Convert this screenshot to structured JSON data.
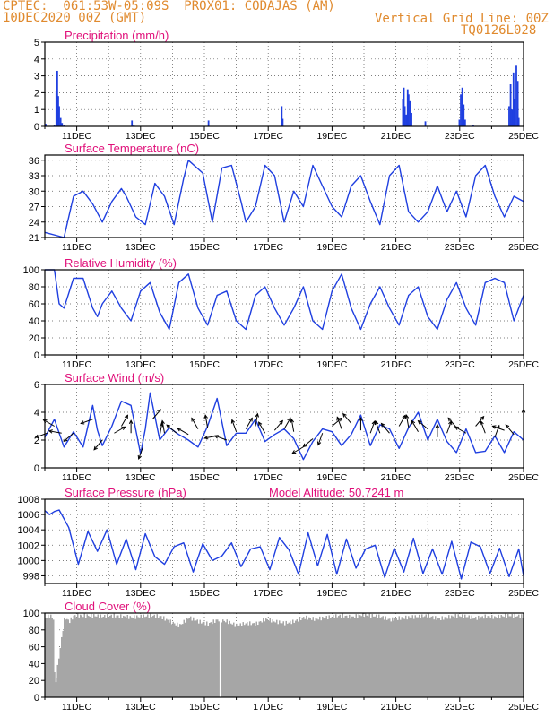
{
  "header": {
    "line1_left": "CPTEC:  061:53W-05:09S  PROX01: CODAJAS (AM)",
    "line2_left": "10DEC2020 00Z (GMT)",
    "line1_right": "Vertical Grid Line: 00Z",
    "line2_right": "TQ0126L028"
  },
  "colors": {
    "header": "#e08a2e",
    "title": "#e0107a",
    "series": "#1f3fe0",
    "cloud": "#a6a6a6",
    "grid": "#555555"
  },
  "x_tick_labels": [
    "11DEC",
    "13DEC",
    "15DEC",
    "17DEC",
    "19DEC",
    "21DEC",
    "23DEC",
    "25DEC"
  ],
  "chart_data": [
    {
      "type": "bar",
      "title": "Precipitation (mm/h)",
      "ylim": [
        0,
        5
      ],
      "yticks": [
        0,
        1,
        2,
        3,
        4,
        5
      ],
      "grid": true,
      "x_hour_bars": [
        [
          0.2,
          0.15
        ],
        [
          2.0,
          0.1
        ],
        [
          2.4,
          2.1
        ],
        [
          2.6,
          3.3
        ],
        [
          2.8,
          1.8
        ],
        [
          3.0,
          1.2
        ],
        [
          3.3,
          0.5
        ],
        [
          3.6,
          0.2
        ],
        [
          4.0,
          0.1
        ],
        [
          18.2,
          0.35
        ],
        [
          18.6,
          0.1
        ],
        [
          34.2,
          0.35
        ],
        [
          49.5,
          1.2
        ],
        [
          49.7,
          0.45
        ],
        [
          74.8,
          1.6
        ],
        [
          75.0,
          2.3
        ],
        [
          75.2,
          1.2
        ],
        [
          75.5,
          0.7
        ],
        [
          75.8,
          2.2
        ],
        [
          76.0,
          1.9
        ],
        [
          76.3,
          1.5
        ],
        [
          76.6,
          0.8
        ],
        [
          79.5,
          0.3
        ],
        [
          86.6,
          0.4
        ],
        [
          86.9,
          1.9
        ],
        [
          87.2,
          2.3
        ],
        [
          87.5,
          1.3
        ],
        [
          87.8,
          0.4
        ],
        [
          89.5,
          0.1
        ],
        [
          97.0,
          1.2
        ],
        [
          97.3,
          2.5
        ],
        [
          97.6,
          1.0
        ],
        [
          97.9,
          3.2
        ],
        [
          98.2,
          1.6
        ],
        [
          98.5,
          3.6
        ],
        [
          98.8,
          2.7
        ],
        [
          99.0,
          0.5
        ]
      ]
    },
    {
      "type": "line",
      "title": "Surface Temperature (nC)",
      "ylim": [
        21,
        37
      ],
      "yticks": [
        21,
        24,
        27,
        30,
        33,
        36
      ],
      "grid": true,
      "x_hours": [
        0,
        4,
        6,
        8,
        10,
        12,
        14,
        16,
        17,
        19,
        21,
        23,
        25,
        27,
        29,
        30,
        33,
        35,
        37,
        39,
        41,
        42,
        44,
        46,
        48,
        50,
        52,
        54,
        56,
        58,
        60,
        62,
        64,
        66,
        68,
        70,
        72,
        74,
        76,
        78,
        80,
        82,
        84,
        86,
        88,
        90,
        92,
        94,
        96,
        98,
        100
      ],
      "values": [
        22,
        21,
        29,
        30,
        27.5,
        24,
        28,
        30.5,
        29,
        25,
        23.5,
        31.5,
        29,
        23.5,
        32.5,
        36,
        33.5,
        24,
        34.5,
        35,
        28,
        24,
        27,
        35,
        33,
        24,
        30,
        27,
        35,
        31,
        27,
        25,
        31,
        33,
        28,
        23.5,
        33,
        35,
        26,
        24,
        26,
        31,
        26,
        30,
        25,
        33,
        35,
        29,
        25,
        29,
        28
      ]
    },
    {
      "type": "line",
      "title": "Relative Humidity (%)",
      "ylim": [
        0,
        100
      ],
      "yticks": [
        0,
        20,
        40,
        60,
        80,
        100
      ],
      "grid": true,
      "x_hours": [
        0,
        2,
        3,
        4,
        6,
        8,
        10,
        11,
        12,
        14,
        16,
        18,
        20,
        22,
        24,
        26,
        28,
        30,
        32,
        34,
        36,
        38,
        40,
        42,
        44,
        46,
        48,
        50,
        52,
        54,
        56,
        58,
        60,
        62,
        64,
        66,
        68,
        70,
        72,
        74,
        76,
        78,
        80,
        82,
        84,
        86,
        88,
        90,
        92,
        94,
        96,
        98,
        100
      ],
      "values": [
        100,
        100,
        60,
        55,
        90,
        90,
        55,
        45,
        60,
        75,
        55,
        40,
        75,
        85,
        50,
        30,
        85,
        95,
        55,
        35,
        70,
        75,
        40,
        30,
        70,
        80,
        55,
        35,
        55,
        80,
        40,
        30,
        75,
        95,
        55,
        30,
        60,
        80,
        55,
        35,
        70,
        80,
        45,
        30,
        65,
        85,
        55,
        35,
        85,
        90,
        85,
        40,
        70
      ]
    },
    {
      "type": "line",
      "title": "Surface Wind (m/s)",
      "ylim": [
        0,
        6
      ],
      "yticks": [
        0,
        2,
        4,
        6
      ],
      "grid": true,
      "x_hours": [
        0,
        2,
        4,
        6,
        8,
        10,
        11,
        12,
        14,
        16,
        18,
        20,
        21,
        22,
        24,
        26,
        28,
        30,
        32,
        34,
        36,
        38,
        40,
        42,
        44,
        46,
        48,
        50,
        52,
        54,
        56,
        58,
        60,
        62,
        64,
        66,
        68,
        70,
        72,
        74,
        76,
        78,
        80,
        82,
        84,
        86,
        88,
        90,
        92,
        94,
        96,
        98,
        100
      ],
      "values": [
        2.2,
        3.5,
        1.5,
        2.6,
        1.5,
        4.5,
        2.7,
        1.6,
        3.0,
        4.8,
        4.5,
        1.0,
        2.8,
        5.4,
        2.0,
        2.9,
        2.4,
        2.0,
        1.5,
        3.0,
        5.0,
        1.6,
        2.5,
        2.5,
        3.5,
        1.9,
        2.4,
        2.8,
        2.1,
        0.6,
        1.9,
        2.8,
        2.6,
        1.6,
        2.4,
        3.8,
        1.6,
        3.1,
        2.8,
        1.4,
        2.9,
        4.0,
        2.0,
        3.5,
        1.9,
        1.1,
        2.8,
        1.1,
        1.2,
        2.3,
        1.1,
        2.6,
        2.0
      ],
      "arrows": [
        [
          0.5,
          2.5,
          200
        ],
        [
          2,
          3,
          150
        ],
        [
          3.5,
          2.5,
          170
        ],
        [
          6,
          2.5,
          220
        ],
        [
          10,
          3.5,
          200
        ],
        [
          12,
          2,
          230
        ],
        [
          14.5,
          2.5,
          30
        ],
        [
          16,
          3,
          60
        ],
        [
          18,
          2.5,
          90
        ],
        [
          20.5,
          1.5,
          250
        ],
        [
          22.5,
          3.5,
          50
        ],
        [
          24,
          2.3,
          80
        ],
        [
          25,
          2.5,
          100
        ],
        [
          27.5,
          2.5,
          140
        ],
        [
          30,
          2.4,
          150
        ],
        [
          32,
          2.8,
          120
        ],
        [
          34,
          2.9,
          100
        ],
        [
          36,
          2.3,
          190
        ],
        [
          38,
          2,
          160
        ],
        [
          40,
          2.6,
          110
        ],
        [
          42,
          2.8,
          60
        ],
        [
          44,
          3,
          80
        ],
        [
          46,
          2.5,
          120
        ],
        [
          48,
          2.7,
          50
        ],
        [
          50,
          2.8,
          60
        ],
        [
          52,
          2.6,
          100
        ],
        [
          54,
          1.5,
          210
        ],
        [
          56,
          2.1,
          220
        ],
        [
          58,
          2.5,
          250
        ],
        [
          60,
          3,
          40
        ],
        [
          62,
          2.8,
          110
        ],
        [
          64,
          3.2,
          130
        ],
        [
          66,
          2.7,
          90
        ],
        [
          68,
          2.5,
          70
        ],
        [
          70,
          2.5,
          110
        ],
        [
          72,
          2.5,
          130
        ],
        [
          74,
          3,
          60
        ],
        [
          76,
          2.9,
          100
        ],
        [
          78,
          2.6,
          120
        ],
        [
          80,
          2.8,
          140
        ],
        [
          82,
          2.2,
          90
        ],
        [
          84,
          2.5,
          70
        ],
        [
          86,
          2.9,
          130
        ],
        [
          88,
          2.5,
          150
        ],
        [
          90,
          3,
          50
        ],
        [
          92,
          2.5,
          110
        ],
        [
          94,
          2.2,
          70
        ],
        [
          96,
          2.7,
          160
        ],
        [
          98,
          2.4,
          130
        ],
        [
          100,
          3.3,
          90
        ]
      ]
    },
    {
      "type": "line",
      "title": "Surface Pressure (hPa)",
      "subtitle": "Model Altitude: 50.7241 m",
      "ylim": [
        997,
        1008
      ],
      "yticks": [
        998,
        1000,
        1002,
        1004,
        1006,
        1008
      ],
      "grid": true,
      "x_hours": [
        0,
        1,
        2,
        3,
        5,
        7,
        9,
        11,
        13,
        15,
        17,
        19,
        21,
        23,
        25,
        27,
        29,
        31,
        33,
        35,
        37,
        39,
        41,
        43,
        45,
        47,
        49,
        51,
        53,
        55,
        57,
        59,
        61,
        63,
        65,
        67,
        69,
        71,
        73,
        75,
        77,
        79,
        81,
        83,
        85,
        87,
        89,
        91,
        93,
        95,
        97,
        99,
        100
      ],
      "values": [
        1006.5,
        1006,
        1006.4,
        1006.6,
        1004.3,
        999.5,
        1003.8,
        1001.2,
        1004,
        999.5,
        1002.8,
        998.8,
        1003.5,
        1000.5,
        999.5,
        1001.8,
        1002.3,
        998.5,
        1002.2,
        1000,
        1000.6,
        1002.3,
        999.2,
        1001.5,
        1001.8,
        998.8,
        1003,
        1001.4,
        998.2,
        1003.6,
        999.3,
        1003.4,
        998.2,
        1002.8,
        999,
        1001.5,
        1002,
        997.8,
        1001.6,
        998.5,
        1002.9,
        998.3,
        1001.5,
        998.2,
        1002.5,
        997.6,
        1002.4,
        1001.8,
        998.3,
        1001.6,
        997.9,
        1001.5,
        998
      ]
    },
    {
      "type": "area",
      "title": "Cloud Cover (%)",
      "ylim": [
        0,
        100
      ],
      "yticks": [
        0,
        20,
        40,
        60,
        80,
        100
      ],
      "grid": true,
      "values_note_x_hours": [
        0,
        1,
        1.8,
        2,
        4,
        5,
        6,
        8,
        10,
        12,
        14,
        16,
        18,
        20,
        22,
        24,
        26,
        28,
        30,
        32,
        34,
        36,
        38,
        40,
        42,
        44,
        46,
        48,
        50,
        52,
        54,
        56,
        58,
        60,
        62,
        64,
        66,
        68,
        70,
        72,
        74,
        76,
        78,
        80,
        82,
        84,
        86,
        88,
        90,
        92,
        94,
        96,
        98,
        100
      ],
      "values": [
        95,
        97,
        92,
        15,
        95,
        90,
        97,
        97,
        97,
        96,
        97,
        96,
        95,
        96,
        97,
        96,
        90,
        85,
        95,
        90,
        87,
        92,
        90,
        85,
        88,
        87,
        93,
        90,
        88,
        90,
        95,
        93,
        94,
        96,
        97,
        95,
        98,
        97,
        96,
        92,
        94,
        95,
        96,
        97,
        93,
        95,
        97,
        96,
        94,
        96,
        95,
        97,
        97,
        96
      ]
    }
  ]
}
